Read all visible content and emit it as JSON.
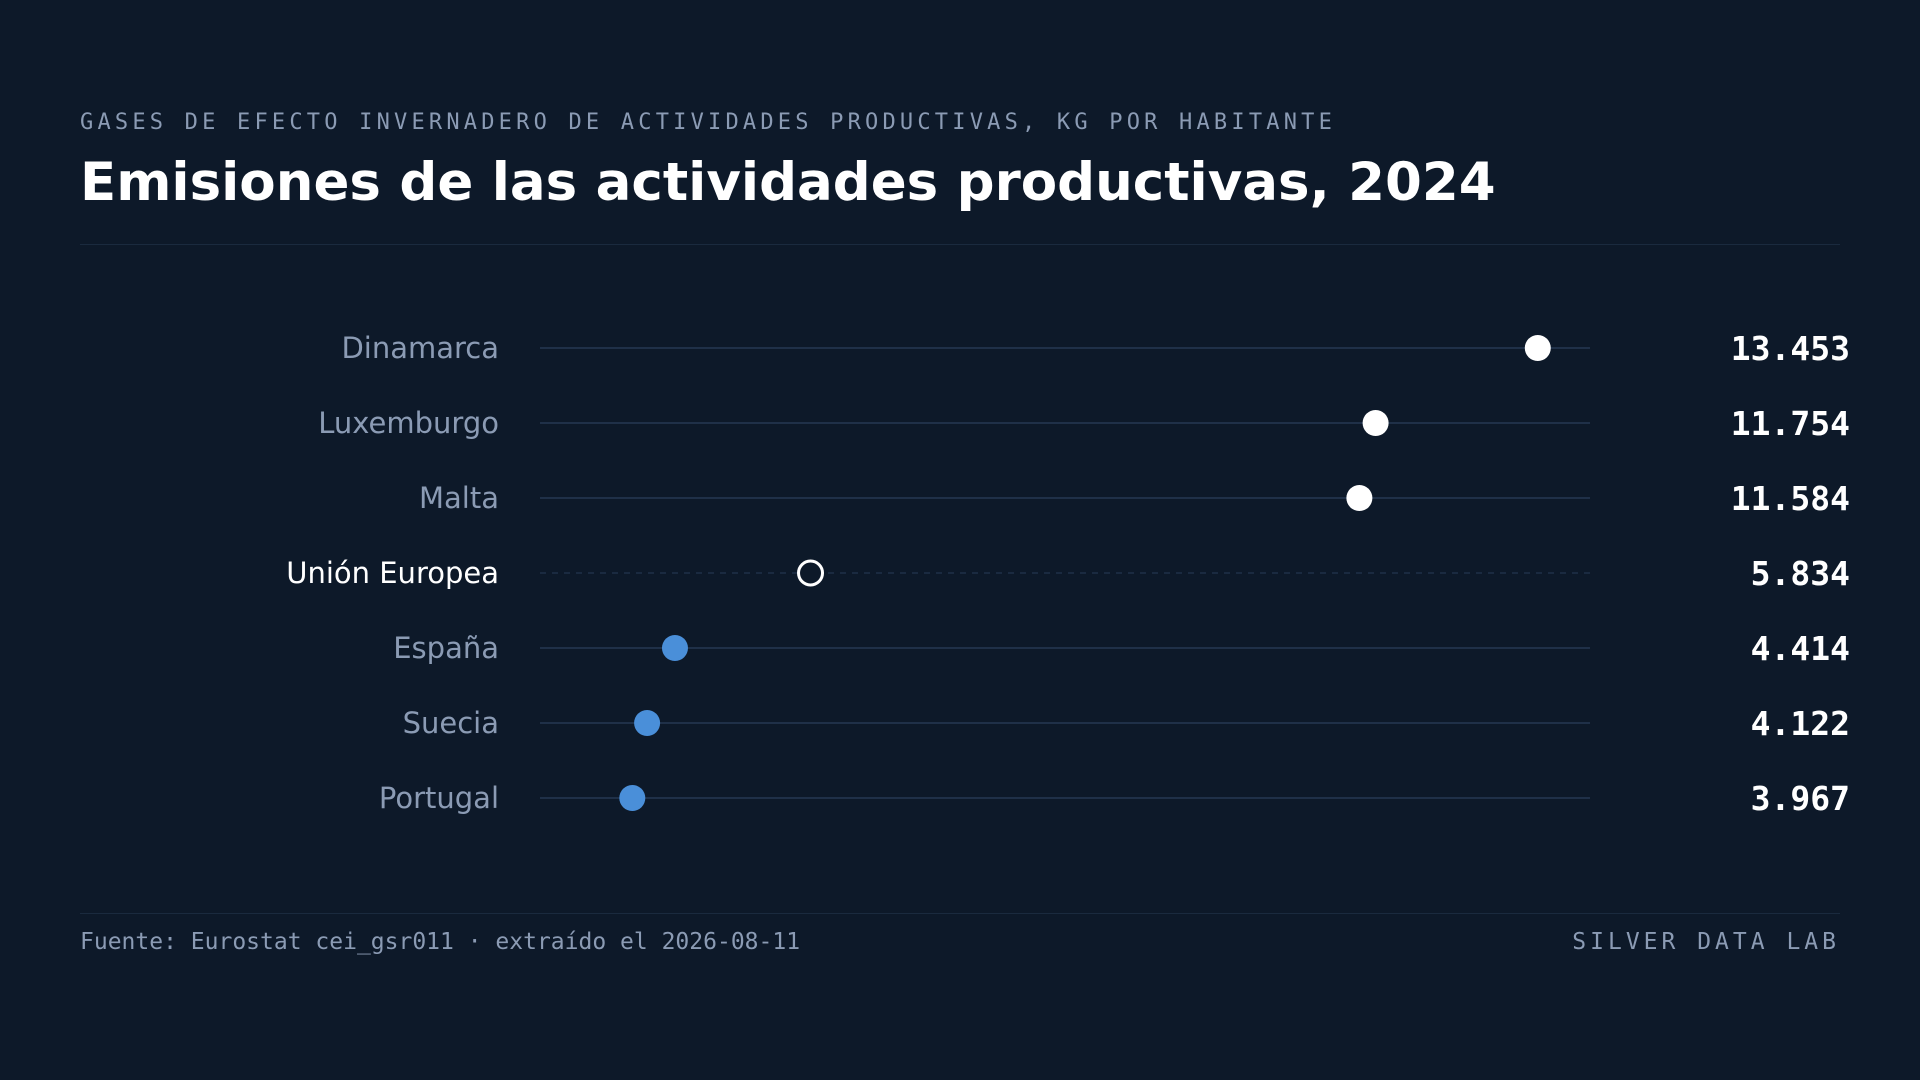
{
  "header": {
    "subtitle": "GASES DE EFECTO INVERNADERO DE ACTIVIDADES PRODUCTIVAS, KG POR HABITANTE",
    "title": "Emisiones de las actividades productivas, 2024"
  },
  "footer": {
    "source": "Fuente: Eurostat cei_gsr011 · extraído el 2026-08-11",
    "brand": "SILVER DATA LAB"
  },
  "colors": {
    "background": "#0d1929",
    "highlight_dot": "#ffffff",
    "reference_dot_stroke": "#ffffff",
    "other_dot": "#4a8fd9",
    "track": "#1f3048",
    "label_muted": "#8b9bb4",
    "label_strong": "#ffffff",
    "value_text": "#ffffff"
  },
  "chart_data": {
    "type": "dot",
    "title": "Emisiones de las actividades productivas, 2024",
    "subtitle": "GASES DE EFECTO INVERNADERO DE ACTIVIDADES PRODUCTIVAS, KG POR HABITANTE",
    "categories": [
      "Dinamarca",
      "Luxemburgo",
      "Malta",
      "Unión Europea",
      "España",
      "Suecia",
      "Portugal"
    ],
    "values": [
      13453,
      11754,
      11584,
      5834,
      4414,
      4122,
      3967
    ],
    "value_labels": [
      "13.453",
      "11.754",
      "11.584",
      "5.834",
      "4.414",
      "4.122",
      "3.967"
    ],
    "groups": [
      "top",
      "top",
      "top",
      "reference",
      "other",
      "other",
      "other"
    ],
    "xlim": [
      3000,
      14000
    ],
    "grid": false,
    "legend": "none"
  }
}
